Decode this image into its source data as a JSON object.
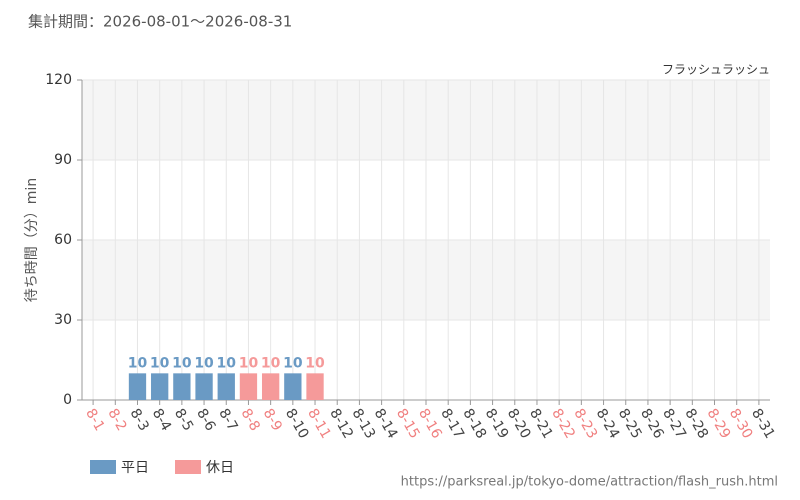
{
  "chart_data": {
    "type": "bar",
    "title": "集計期間：2026-08-01～2026-08-31",
    "subtitle": "フラッシュラッシュ",
    "y_label": "待ち時間（分）min",
    "categories": [
      "8-1",
      "8-2",
      "8-3",
      "8-4",
      "8-5",
      "8-6",
      "8-7",
      "8-8",
      "8-9",
      "8-10",
      "8-11",
      "8-12",
      "8-13",
      "8-14",
      "8-15",
      "8-16",
      "8-17",
      "8-18",
      "8-19",
      "8-20",
      "8-21",
      "8-22",
      "8-23",
      "8-24",
      "8-25",
      "8-26",
      "8-27",
      "8-28",
      "8-29",
      "8-30",
      "8-31"
    ],
    "category_label_colors": [
      "#f08080",
      "#f08080",
      "#444",
      "#444",
      "#444",
      "#444",
      "#444",
      "#f08080",
      "#f08080",
      "#444",
      "#f08080",
      "#444",
      "#444",
      "#444",
      "#f08080",
      "#f08080",
      "#444",
      "#444",
      "#444",
      "#444",
      "#444",
      "#f08080",
      "#f08080",
      "#444",
      "#444",
      "#444",
      "#444",
      "#444",
      "#f08080",
      "#f08080",
      "#444"
    ],
    "series": [
      {
        "name": "平日",
        "color": "#6a9ac4",
        "values": [
          null,
          null,
          10,
          10,
          10,
          10,
          10,
          null,
          null,
          10,
          null,
          null,
          null,
          null,
          null,
          null,
          null,
          null,
          null,
          null,
          null,
          null,
          null,
          null,
          null,
          null,
          null,
          null,
          null,
          null,
          null
        ]
      },
      {
        "name": "休日",
        "color": "#f59a9a",
        "values": [
          null,
          null,
          null,
          null,
          null,
          null,
          null,
          10,
          10,
          null,
          10,
          null,
          null,
          null,
          null,
          null,
          null,
          null,
          null,
          null,
          null,
          null,
          null,
          null,
          null,
          null,
          null,
          null,
          null,
          null,
          null
        ]
      }
    ],
    "ylim": [
      0,
      120
    ],
    "yticks": [
      0,
      30,
      60,
      90,
      120
    ],
    "grid": true,
    "source": "https://parksreal.jp/tokyo-dome/attraction/flash_rush.html"
  }
}
